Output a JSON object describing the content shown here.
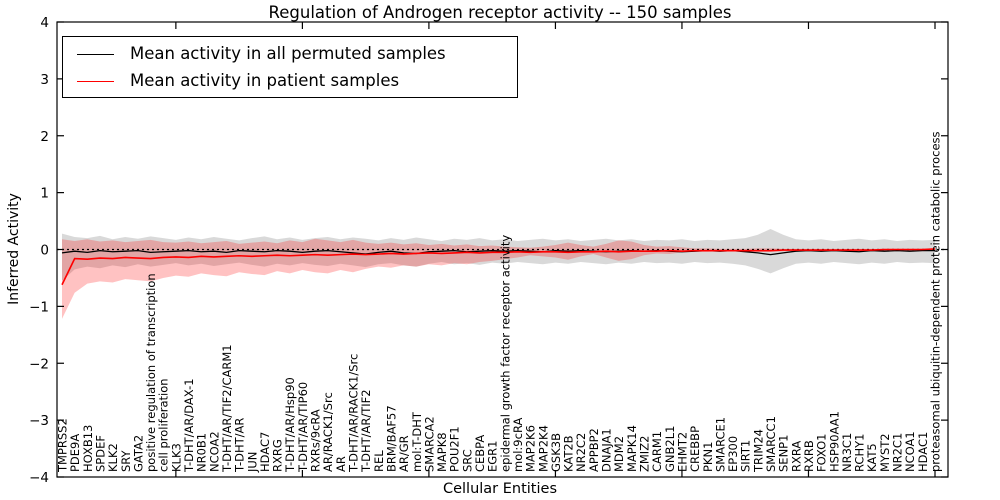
{
  "chart_data": {
    "type": "line",
    "title": "Regulation of Androgen receptor activity -- 150 samples",
    "xlabel": "Cellular Entities",
    "ylabel": "Inferred Activity",
    "ylim": [
      -4,
      4
    ],
    "yticks": [
      4,
      3,
      2,
      1,
      0,
      -1,
      -2,
      -3,
      -4
    ],
    "grid": false,
    "zero_line": "dotted-black",
    "legend": {
      "position": "upper left",
      "entries": [
        {
          "label": "Mean activity in all permuted samples",
          "color": "#000000"
        },
        {
          "label": "Mean activity in patient samples",
          "color": "#ff0000"
        }
      ]
    },
    "categories": [
      "TMPRSS2",
      "PDE9A",
      "HOXB13",
      "SPDEF",
      "KLK2",
      "SRY",
      "GATA2",
      "positive regulation of transcription",
      "cell proliferation",
      "KLK3",
      "T-DHT/AR/DAX-1",
      "NR0B1",
      "NCOA2",
      "T-DHT/AR/TIF2/CARM1",
      "T-DHT/AR",
      "JUN",
      "HDAC7",
      "RXRG",
      "T-DHT/AR/Hsp90",
      "T-DHT/AR/TIP60",
      "RXRs/9cRA",
      "AR/RACK1/Src",
      "AR",
      "T-DHT/AR/RACK1/Src",
      "T-DHT/AR/TIF2",
      "REL",
      "BRM/BAF57",
      "AR/GR",
      "mol:T-DHT",
      "SMARCA2",
      "MAPK8",
      "POU2F1",
      "SRC",
      "CEBPA",
      "EGR1",
      "epidermal growth factor receptor activity",
      "mol:9cRA",
      "MAP2K6",
      "MAP2K4",
      "GSK3B",
      "KAT2B",
      "NR2C2",
      "APPBP2",
      "DNAJA1",
      "MDM2",
      "MAPK14",
      "ZMIZ2",
      "CARM1",
      "GNB2L1",
      "EHMT2",
      "CREBBP",
      "PKN1",
      "SMARCE1",
      "EP300",
      "SIRT1",
      "TRIM24",
      "SMARCC1",
      "SENP1",
      "RXRA",
      "RXRB",
      "FOXO1",
      "HSP90AA1",
      "NR3C1",
      "RCHY1",
      "KAT5",
      "MYST2",
      "NR2C1",
      "NCOA1",
      "HDAC1",
      "proteasomal ubiquitin-dependent protein catabolic process"
    ],
    "series": [
      {
        "name": "Mean activity in all permuted samples",
        "color": "#000000",
        "band_fill": "#9a9a9a",
        "band_opacity": 0.38,
        "mean": [
          -0.06,
          -0.03,
          -0.05,
          -0.02,
          -0.04,
          -0.03,
          -0.02,
          -0.05,
          -0.04,
          -0.03,
          -0.02,
          -0.04,
          -0.03,
          -0.05,
          -0.02,
          -0.03,
          -0.04,
          -0.02,
          -0.03,
          -0.05,
          -0.03,
          -0.02,
          -0.04,
          -0.06,
          -0.08,
          -0.05,
          -0.03,
          -0.06,
          -0.07,
          -0.04,
          -0.03,
          -0.02,
          -0.04,
          -0.03,
          -0.02,
          -0.03,
          -0.02,
          -0.03,
          -0.04,
          -0.02,
          -0.03,
          -0.02,
          -0.03,
          -0.04,
          -0.03,
          -0.02,
          -0.03,
          -0.02,
          -0.03,
          -0.04,
          -0.03,
          -0.02,
          -0.03,
          -0.02,
          -0.04,
          -0.06,
          -0.09,
          -0.06,
          -0.03,
          -0.02,
          -0.03,
          -0.02,
          -0.03,
          -0.04,
          -0.02,
          -0.03,
          -0.02,
          -0.03,
          -0.02,
          -0.02
        ],
        "band_upper": [
          0.28,
          0.22,
          0.2,
          0.24,
          0.18,
          0.22,
          0.19,
          0.23,
          0.2,
          0.17,
          0.21,
          0.18,
          0.22,
          0.19,
          0.16,
          0.2,
          0.23,
          0.18,
          0.21,
          0.17,
          0.2,
          0.22,
          0.18,
          0.21,
          0.19,
          0.16,
          0.2,
          0.17,
          0.21,
          0.18,
          0.15,
          0.19,
          0.17,
          0.2,
          0.16,
          0.18,
          0.15,
          0.17,
          0.19,
          0.16,
          0.18,
          0.15,
          0.17,
          0.19,
          0.16,
          0.18,
          0.15,
          0.17,
          0.16,
          0.18,
          0.15,
          0.17,
          0.16,
          0.18,
          0.2,
          0.26,
          0.36,
          0.26,
          0.18,
          0.16,
          0.18,
          0.15,
          0.17,
          0.19,
          0.16,
          0.18,
          0.15,
          0.17,
          0.16,
          0.17
        ],
        "band_lower": [
          -0.55,
          -0.35,
          -0.3,
          -0.33,
          -0.28,
          -0.31,
          -0.26,
          -0.3,
          -0.27,
          -0.24,
          -0.28,
          -0.25,
          -0.29,
          -0.26,
          -0.23,
          -0.27,
          -0.3,
          -0.25,
          -0.28,
          -0.24,
          -0.27,
          -0.29,
          -0.25,
          -0.28,
          -0.31,
          -0.26,
          -0.24,
          -0.28,
          -0.3,
          -0.25,
          -0.22,
          -0.26,
          -0.24,
          -0.27,
          -0.23,
          -0.25,
          -0.22,
          -0.24,
          -0.26,
          -0.23,
          -0.25,
          -0.22,
          -0.24,
          -0.26,
          -0.23,
          -0.25,
          -0.22,
          -0.24,
          -0.23,
          -0.25,
          -0.22,
          -0.24,
          -0.23,
          -0.25,
          -0.28,
          -0.34,
          -0.42,
          -0.33,
          -0.25,
          -0.23,
          -0.25,
          -0.22,
          -0.24,
          -0.26,
          -0.23,
          -0.25,
          -0.22,
          -0.24,
          -0.23,
          -0.24
        ]
      },
      {
        "name": "Mean activity in patient samples",
        "color": "#ff0000",
        "band_fill": "#ff0000",
        "band_opacity": 0.24,
        "mean": [
          -0.62,
          -0.16,
          -0.17,
          -0.15,
          -0.16,
          -0.14,
          -0.15,
          -0.16,
          -0.14,
          -0.13,
          -0.14,
          -0.12,
          -0.13,
          -0.12,
          -0.11,
          -0.12,
          -0.11,
          -0.1,
          -0.11,
          -0.1,
          -0.09,
          -0.1,
          -0.09,
          -0.08,
          -0.09,
          -0.08,
          -0.07,
          -0.08,
          -0.07,
          -0.06,
          -0.07,
          -0.06,
          -0.05,
          -0.06,
          -0.05,
          -0.05,
          -0.04,
          -0.05,
          -0.04,
          -0.04,
          -0.05,
          -0.04,
          -0.04,
          -0.03,
          -0.04,
          -0.03,
          -0.03,
          -0.03,
          -0.02,
          -0.03,
          -0.02,
          -0.02,
          -0.02,
          -0.02,
          -0.02,
          -0.02,
          -0.02,
          -0.01,
          -0.01,
          -0.01,
          -0.01,
          -0.01,
          -0.01,
          -0.01,
          -0.01,
          0.0,
          0.0,
          0.0,
          0.0,
          0.01
        ],
        "band_upper": [
          0.18,
          0.15,
          0.18,
          0.14,
          0.16,
          0.13,
          0.15,
          0.17,
          0.13,
          0.12,
          0.14,
          0.11,
          0.13,
          0.15,
          0.1,
          0.12,
          0.14,
          0.11,
          0.16,
          0.13,
          0.19,
          0.16,
          0.13,
          0.17,
          0.12,
          0.1,
          0.12,
          0.09,
          0.11,
          0.08,
          0.1,
          0.07,
          0.09,
          0.06,
          0.07,
          0.05,
          0.04,
          0.03,
          0.05,
          0.08,
          0.12,
          0.08,
          0.05,
          0.1,
          0.16,
          0.14,
          0.08,
          0.05,
          0.06,
          0.04,
          0.02,
          0.02,
          0.01,
          0.01,
          0.01,
          0.02,
          0.02,
          0.01,
          0.01,
          0.01,
          0.01,
          0.01,
          0.01,
          0.01,
          0.01,
          0.01,
          0.01,
          0.01,
          0.01,
          0.02
        ],
        "band_lower": [
          -1.22,
          -0.76,
          -0.6,
          -0.56,
          -0.58,
          -0.52,
          -0.54,
          -0.56,
          -0.5,
          -0.46,
          -0.48,
          -0.42,
          -0.45,
          -0.47,
          -0.4,
          -0.43,
          -0.45,
          -0.38,
          -0.42,
          -0.36,
          -0.4,
          -0.42,
          -0.36,
          -0.4,
          -0.34,
          -0.3,
          -0.32,
          -0.28,
          -0.3,
          -0.26,
          -0.28,
          -0.24,
          -0.26,
          -0.22,
          -0.2,
          -0.17,
          -0.14,
          -0.1,
          -0.12,
          -0.14,
          -0.18,
          -0.12,
          -0.08,
          -0.14,
          -0.2,
          -0.17,
          -0.1,
          -0.07,
          -0.08,
          -0.05,
          -0.04,
          -0.04,
          -0.03,
          -0.03,
          -0.03,
          -0.04,
          -0.04,
          -0.03,
          -0.03,
          -0.03,
          -0.03,
          -0.03,
          -0.03,
          -0.03,
          -0.03,
          -0.02,
          -0.02,
          -0.02,
          -0.02,
          -0.02
        ]
      }
    ]
  }
}
